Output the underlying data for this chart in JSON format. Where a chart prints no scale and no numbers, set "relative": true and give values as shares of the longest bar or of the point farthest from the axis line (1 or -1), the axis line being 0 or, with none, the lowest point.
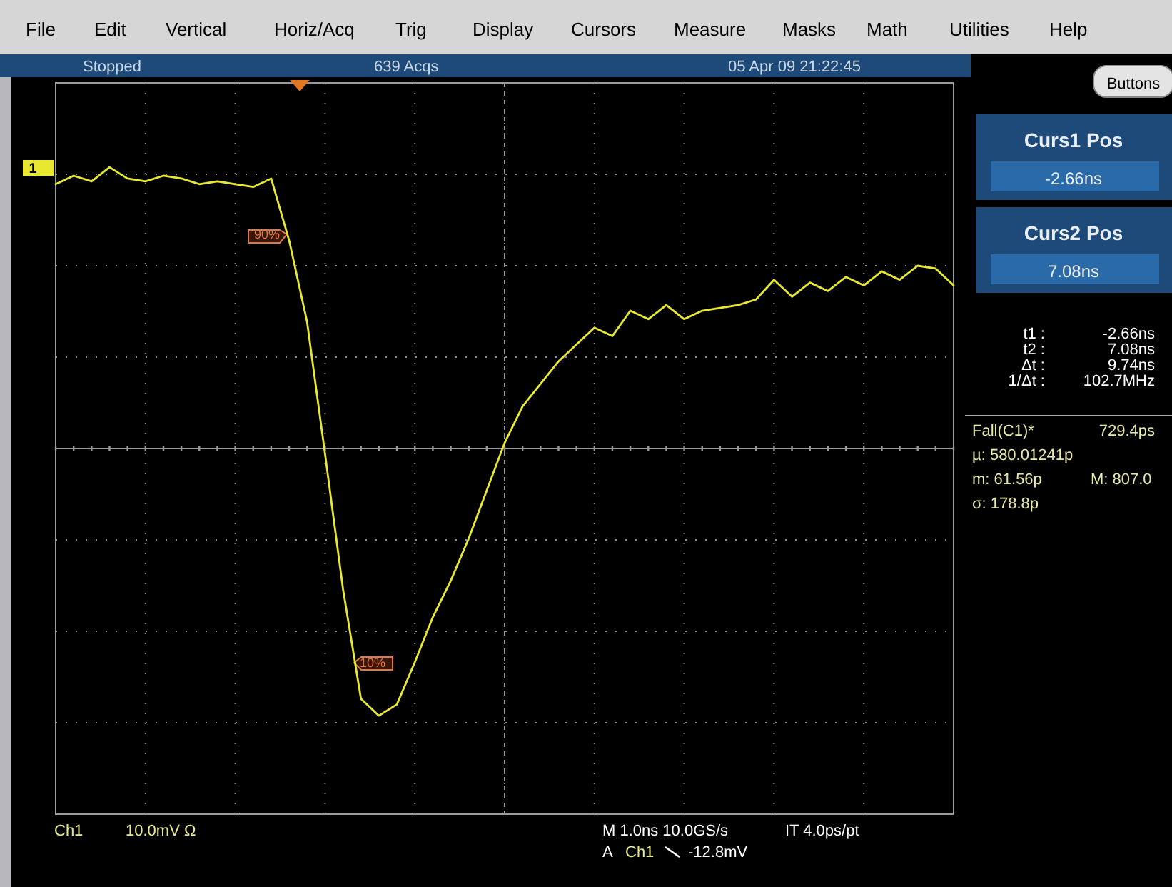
{
  "chart_data": {
    "type": "line",
    "relative": true,
    "grid": true,
    "categories": [
      null,
      null,
      null,
      null,
      null,
      null,
      null,
      null,
      null,
      null,
      null,
      null,
      null,
      null,
      null,
      null,
      null,
      null,
      null,
      null,
      null,
      null,
      null,
      null,
      null,
      null,
      null,
      null,
      null,
      null,
      null,
      null,
      null,
      null,
      null,
      null,
      null,
      null,
      null,
      null,
      null,
      null,
      null,
      null,
      null,
      null,
      null,
      null,
      null,
      null,
      null
    ],
    "series": [
      {
        "color": "#e8e830",
        "values": [
          0.94,
          0.97,
          0.95,
          1.0,
          0.96,
          0.95,
          0.97,
          0.96,
          0.94,
          0.95,
          0.94,
          0.93,
          0.96,
          0.74,
          0.45,
          -0.02,
          -0.5,
          -0.89,
          -0.95,
          -0.91,
          -0.76,
          -0.6,
          -0.47,
          -0.32,
          -0.15,
          0.02,
          0.15,
          0.23,
          0.31,
          0.37,
          0.43,
          0.4,
          0.49,
          0.46,
          0.51,
          0.46,
          0.49,
          0.5,
          0.51,
          0.53,
          0.6,
          0.54,
          0.59,
          0.56,
          0.61,
          0.58,
          0.63,
          0.6,
          0.65,
          0.64,
          0.58
        ]
      }
    ],
    "annotations": [
      "File",
      "Edit",
      "Vertical",
      "Horiz/Acq",
      "Trig",
      "Display",
      "Cursors",
      "Measure",
      "Masks",
      "Math",
      "Utilities",
      "Help",
      "Stopped",
      "639 Acqs",
      "05 Apr 09 21:22:45",
      "Buttons",
      "Curs1 Pos",
      "-2.66ns",
      "Curs2 Pos",
      "7.08ns",
      "t1 :",
      "-2.66ns",
      "t2 :",
      "7.08ns",
      "Δt :",
      "9.74ns",
      "1/Δt :",
      "102.7MHz",
      "Fall(C1)*",
      "729.4ps",
      "µ: 580.01241p",
      "m: 61.56p",
      "M: 807.0",
      "σ: 178.8p",
      "Ch1",
      "10.0mV Ω",
      "M 1.0ns 10.0GS/s",
      "IT 4.0ps/pt",
      "A",
      "Ch1",
      "-12.8mV",
      "90%",
      "10%",
      "1"
    ]
  }
}
